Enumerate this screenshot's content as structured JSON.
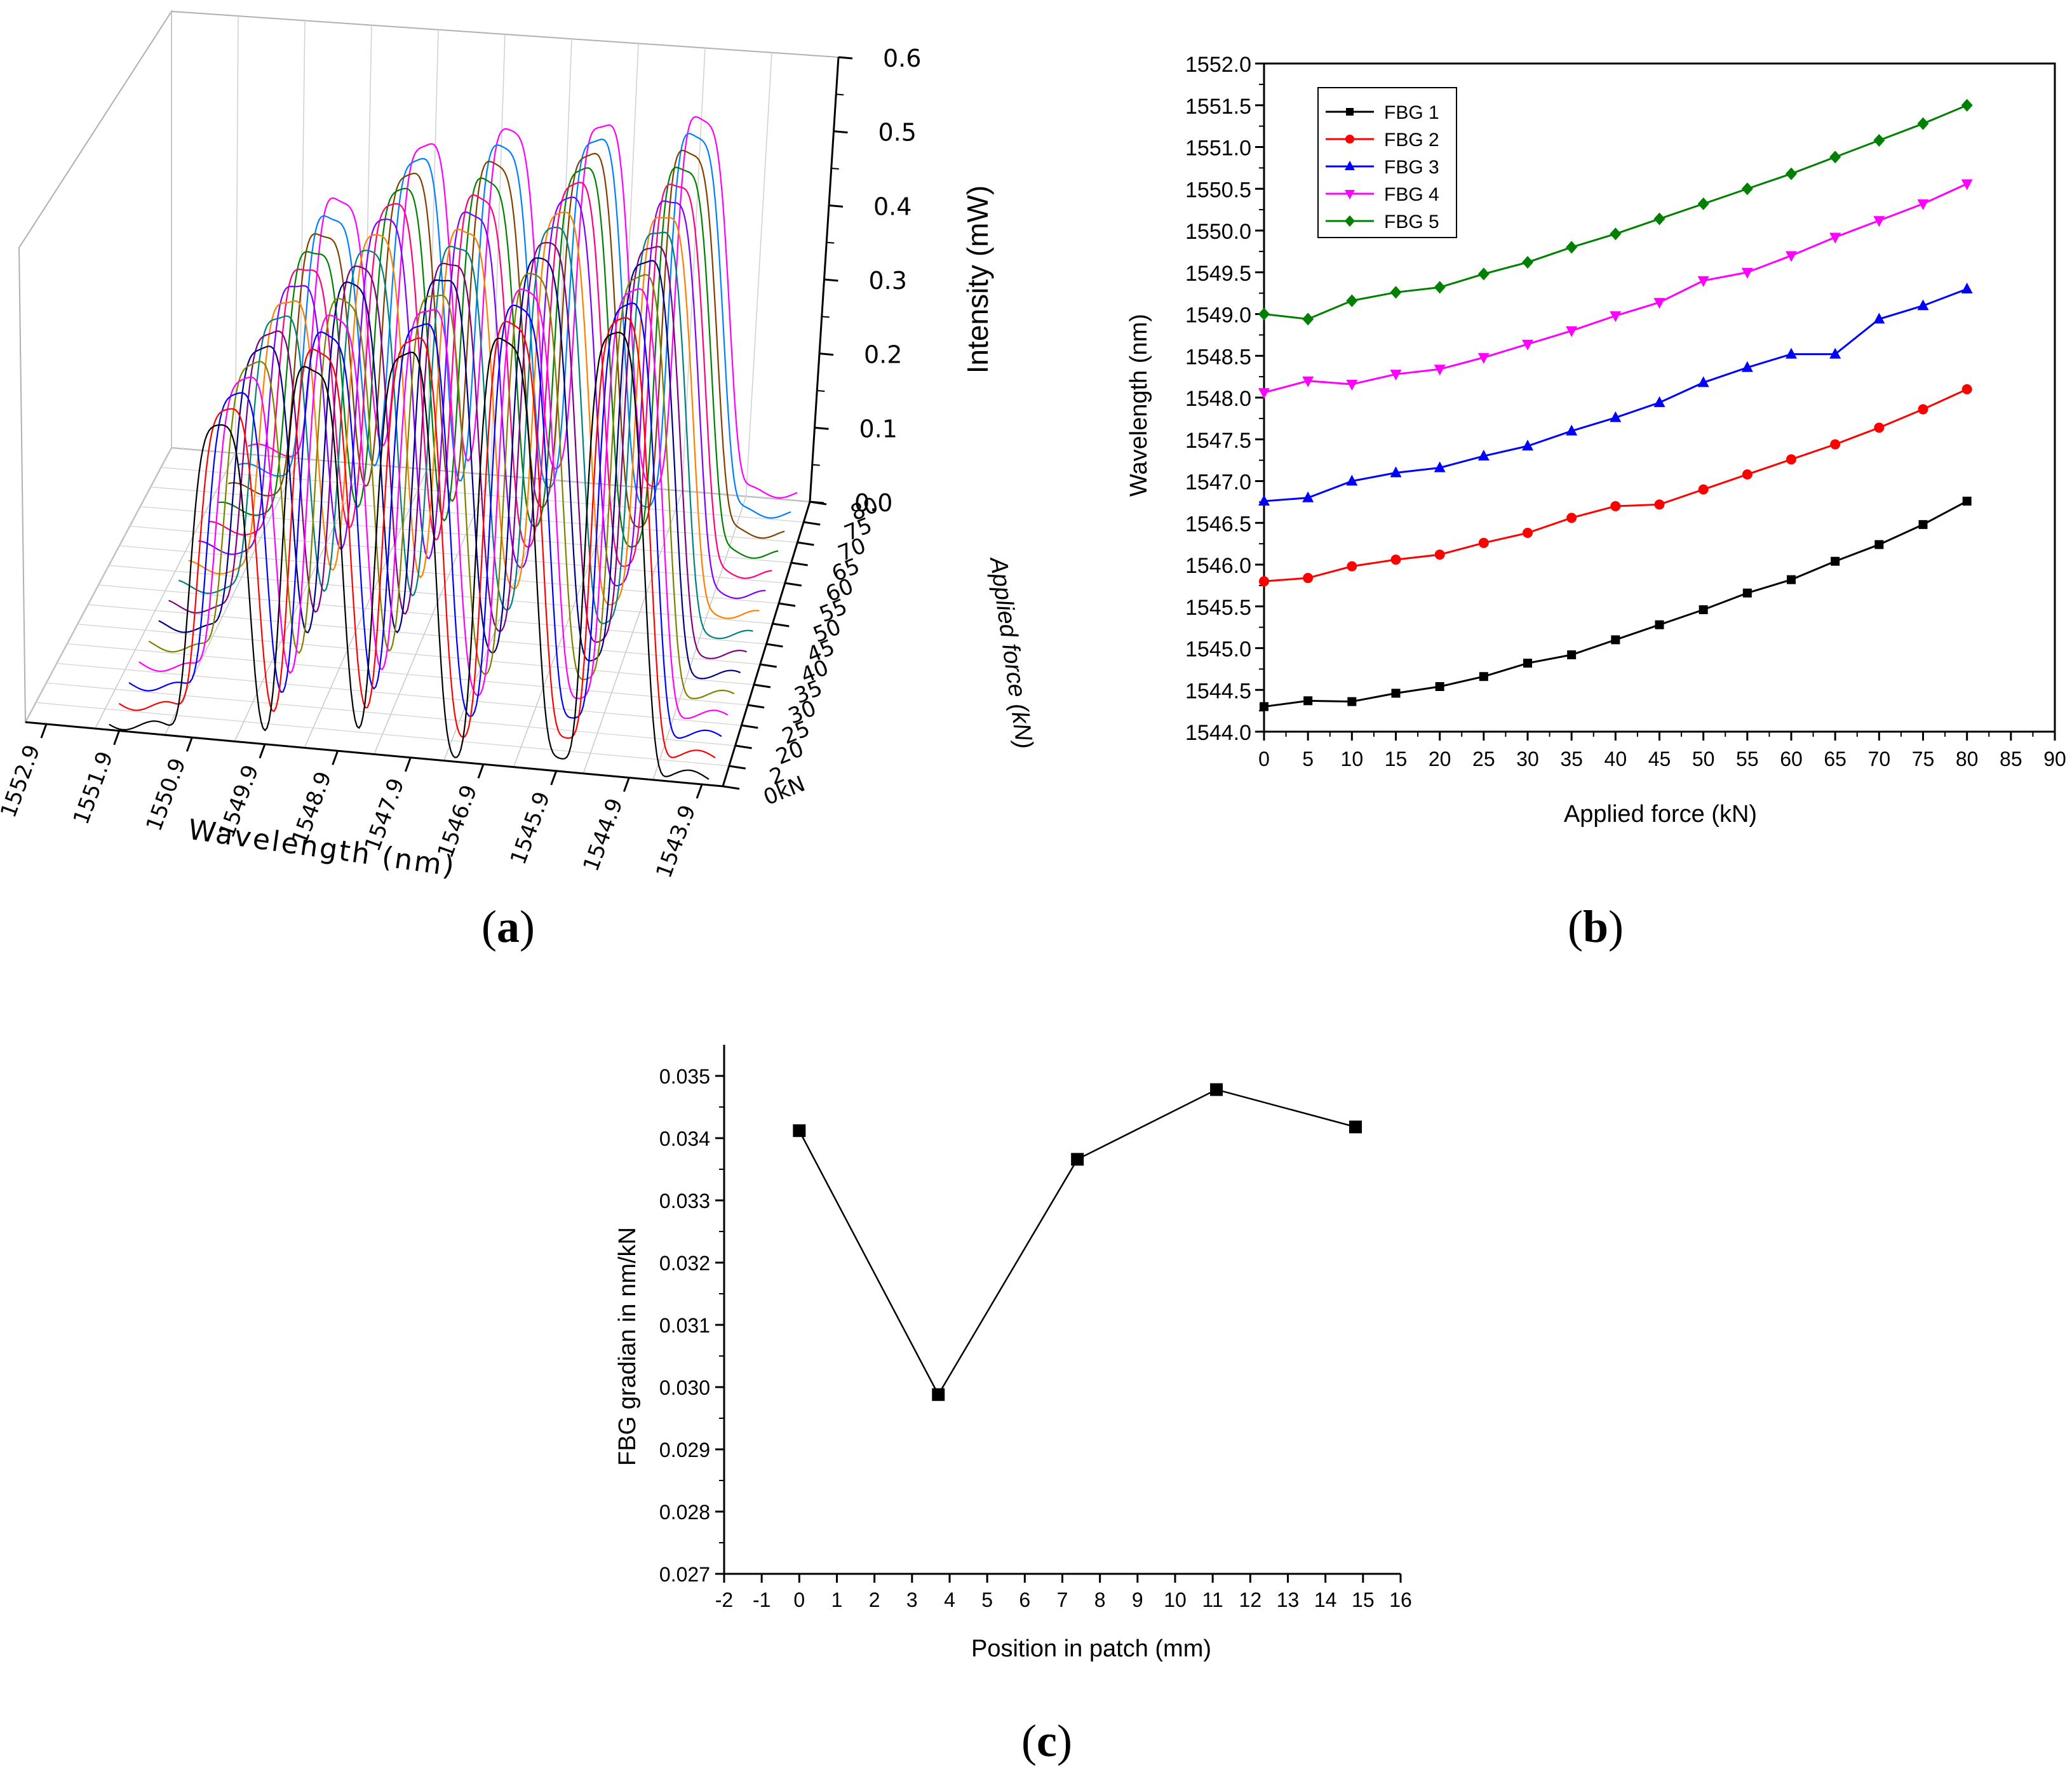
{
  "panels": {
    "a": "a",
    "b": "b",
    "c": "c"
  },
  "chart_data": [
    {
      "id": "a",
      "type": "line-3d-waterfall",
      "title": "",
      "xlabel": "Wavelength (nm)",
      "ylabel": "Applied force (kN)",
      "zlabel": "Intensity (mW)",
      "x_ticks": [
        "1552.9",
        "1551.9",
        "1550.9",
        "1549.9",
        "1548.9",
        "1547.9",
        "1546.9",
        "1545.9",
        "1544.9",
        "1543.9"
      ],
      "y_ticks": [
        "0kN",
        "2",
        "20",
        "25",
        "30",
        "35",
        "40",
        "45",
        "50",
        "55",
        "60",
        "65",
        "70",
        "75",
        "80"
      ],
      "z_ticks": [
        "0.0",
        "0.1",
        "0.2",
        "0.3",
        "0.4",
        "0.5",
        "0.6"
      ],
      "xlim": [
        1552.9,
        1543.9
      ],
      "zlim": [
        0.0,
        0.6
      ],
      "peak_wavelengths": [
        1550.4,
        1549.2,
        1548.0,
        1546.7,
        1545.3
      ],
      "peak_intensities": [
        0.42,
        0.52,
        0.55,
        0.58,
        0.6
      ],
      "series_colors": [
        "#000000",
        "#ff0000",
        "#0000ff",
        "#ff00ff",
        "#808000",
        "#000080",
        "#800080",
        "#008080",
        "#ff8000",
        "#8000ff",
        "#ff0080",
        "#008000",
        "#804000",
        "#0080ff",
        "#ff00ff"
      ]
    },
    {
      "id": "b",
      "type": "line",
      "title": "",
      "xlabel": "Applied force (kN)",
      "ylabel": "Wavelength (nm)",
      "xlim": [
        0,
        90
      ],
      "ylim": [
        1544.0,
        1552.0
      ],
      "x_ticks": [
        "0",
        "5",
        "10",
        "15",
        "20",
        "25",
        "30",
        "35",
        "40",
        "45",
        "50",
        "55",
        "60",
        "65",
        "70",
        "75",
        "80",
        "85",
        "90"
      ],
      "y_ticks": [
        "1544.0",
        "1544.5",
        "1545.0",
        "1545.5",
        "1546.0",
        "1546.5",
        "1547.0",
        "1547.5",
        "1548.0",
        "1548.5",
        "1549.0",
        "1549.5",
        "1550.0",
        "1550.5",
        "1551.0",
        "1551.5",
        "1552.0"
      ],
      "legend_position": "top-left",
      "x": [
        0,
        5,
        10,
        15,
        20,
        25,
        30,
        35,
        40,
        45,
        50,
        55,
        60,
        65,
        70,
        75,
        80
      ],
      "series": [
        {
          "name": "FBG 1",
          "color": "#000000",
          "marker": "square",
          "values": [
            1544.3,
            1544.37,
            1544.36,
            1544.46,
            1544.54,
            1544.66,
            1544.82,
            1544.92,
            1545.1,
            1545.28,
            1545.46,
            1545.66,
            1545.82,
            1546.04,
            1546.24,
            1546.48,
            1546.76
          ]
        },
        {
          "name": "FBG 2",
          "color": "#ff0000",
          "marker": "circle",
          "values": [
            1545.8,
            1545.84,
            1545.98,
            1546.06,
            1546.12,
            1546.26,
            1546.38,
            1546.56,
            1546.7,
            1546.72,
            1546.9,
            1547.08,
            1547.26,
            1547.44,
            1547.64,
            1547.86,
            1548.1
          ]
        },
        {
          "name": "FBG 3",
          "color": "#0000ff",
          "marker": "triangle-up",
          "values": [
            1546.76,
            1546.8,
            1547.0,
            1547.1,
            1547.16,
            1547.3,
            1547.42,
            1547.6,
            1547.76,
            1547.94,
            1548.18,
            1548.36,
            1548.52,
            1548.52,
            1548.94,
            1549.1,
            1549.3
          ]
        },
        {
          "name": "FBG 4",
          "color": "#ff00ff",
          "marker": "triangle-down",
          "values": [
            1548.06,
            1548.2,
            1548.16,
            1548.28,
            1548.34,
            1548.48,
            1548.64,
            1548.8,
            1548.98,
            1549.14,
            1549.4,
            1549.5,
            1549.7,
            1549.92,
            1550.12,
            1550.32,
            1550.56
          ]
        },
        {
          "name": "FBG 5",
          "color": "#008000",
          "marker": "diamond",
          "values": [
            1549.0,
            1548.94,
            1549.16,
            1549.26,
            1549.32,
            1549.48,
            1549.62,
            1549.8,
            1549.96,
            1550.14,
            1550.32,
            1550.5,
            1550.68,
            1550.88,
            1551.08,
            1551.28,
            1551.5
          ]
        }
      ]
    },
    {
      "id": "c",
      "type": "line",
      "title": "",
      "xlabel": "Position in patch (mm)",
      "ylabel": "FBG gradian in nm/kN",
      "xlim": [
        -2,
        16
      ],
      "ylim": [
        0.027,
        0.0355
      ],
      "x_ticks": [
        "-2",
        "-1",
        "0",
        "1",
        "2",
        "3",
        "4",
        "5",
        "6",
        "7",
        "8",
        "9",
        "10",
        "11",
        "12",
        "13",
        "14",
        "15",
        "16"
      ],
      "y_ticks": [
        "0.027",
        "0.028",
        "0.029",
        "0.030",
        "0.031",
        "0.032",
        "0.033",
        "0.034",
        "0.035"
      ],
      "series": [
        {
          "name": "FBG gradient",
          "color": "#000000",
          "marker": "square",
          "x": [
            0,
            3.7,
            7.4,
            11.1,
            14.8
          ],
          "values": [
            0.03412,
            0.02988,
            0.03366,
            0.03478,
            0.03418
          ]
        }
      ]
    }
  ]
}
